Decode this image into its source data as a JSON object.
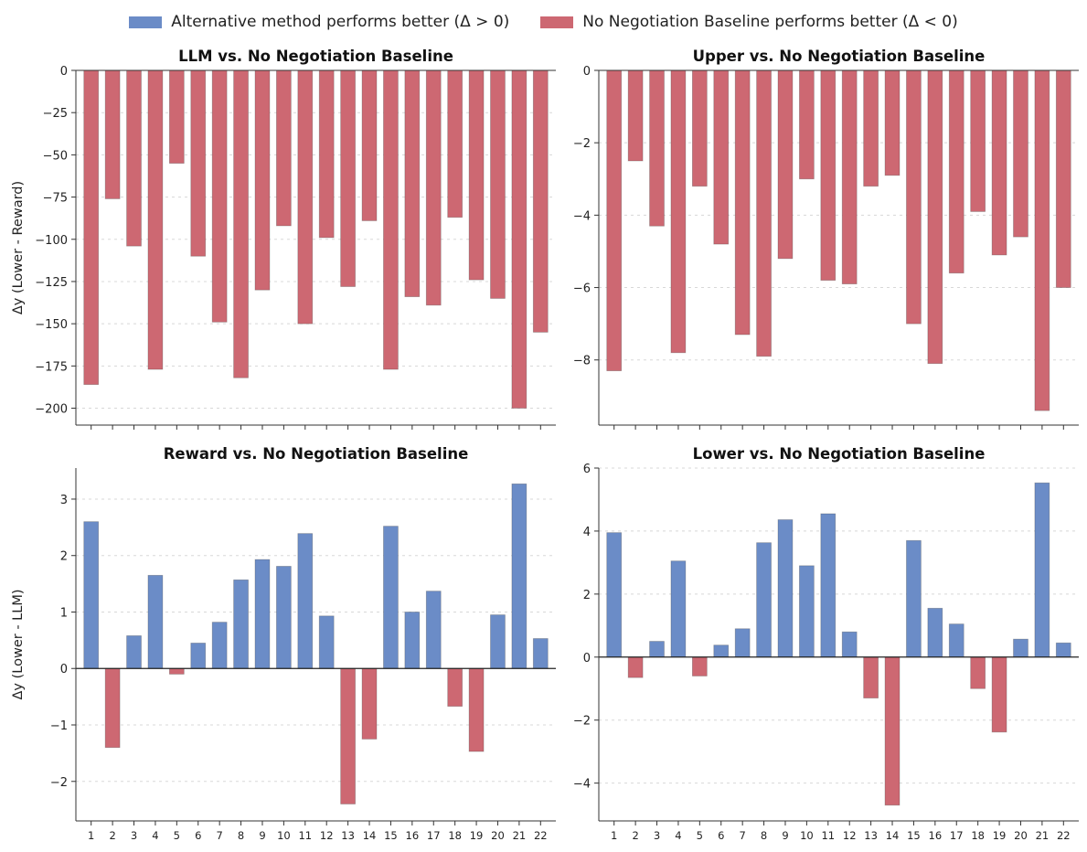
{
  "legend": {
    "positive": {
      "label": "Alternative method performs better (Δ > 0)",
      "color": "#6b8cc7"
    },
    "negative": {
      "label": "No Negotiation Baseline performs better (Δ < 0)",
      "color": "#cd6872"
    }
  },
  "chart_data": [
    {
      "type": "bar",
      "title": "LLM vs. No Negotiation Baseline",
      "ylabel": "Δy (Lower - Reward)",
      "xlabel": "",
      "ylim": [
        -210,
        0
      ],
      "yticks": [
        0,
        -25,
        -50,
        -75,
        -100,
        -125,
        -150,
        -175,
        -200
      ],
      "ytick_labels": [
        "0",
        "−25",
        "−50",
        "−75",
        "−100",
        "−125",
        "−150",
        "−175",
        "−200"
      ],
      "grid": true,
      "categories": [
        "1",
        "2",
        "3",
        "4",
        "5",
        "6",
        "7",
        "8",
        "9",
        "10",
        "11",
        "12",
        "13",
        "14",
        "15",
        "16",
        "17",
        "18",
        "19",
        "20",
        "21",
        "22"
      ],
      "show_xtick_labels": false,
      "values": [
        -186,
        -76,
        -104,
        -177,
        -55,
        -110,
        -149,
        -182,
        -130,
        -92,
        -150,
        -99,
        -128,
        -89,
        -177,
        -134,
        -139,
        -87,
        -124,
        -135,
        -200,
        -155
      ]
    },
    {
      "type": "bar",
      "title": "Upper vs. No Negotiation Baseline",
      "ylabel": "",
      "xlabel": "",
      "ylim": [
        -9.8,
        0
      ],
      "yticks": [
        0,
        -2,
        -4,
        -6,
        -8
      ],
      "ytick_labels": [
        "0",
        "−2",
        "−4",
        "−6",
        "−8"
      ],
      "grid": true,
      "categories": [
        "1",
        "2",
        "3",
        "4",
        "5",
        "6",
        "7",
        "8",
        "9",
        "10",
        "11",
        "12",
        "13",
        "14",
        "15",
        "16",
        "17",
        "18",
        "19",
        "20",
        "21",
        "22"
      ],
      "show_xtick_labels": false,
      "values": [
        -8.3,
        -2.5,
        -4.3,
        -7.8,
        -3.2,
        -4.8,
        -7.3,
        -7.9,
        -5.2,
        -3.0,
        -5.8,
        -5.9,
        -3.2,
        -2.9,
        -7.0,
        -8.1,
        -5.6,
        -3.9,
        -5.1,
        -4.6,
        -9.4,
        -6.0
      ]
    },
    {
      "type": "bar",
      "title": "Reward vs. No Negotiation Baseline",
      "ylabel": "Δy (Lower - LLM)",
      "xlabel": "",
      "ylim": [
        -2.7,
        3.55
      ],
      "yticks": [
        3,
        2,
        1,
        0,
        -1,
        -2
      ],
      "ytick_labels": [
        "3",
        "2",
        "1",
        "0",
        "−1",
        "−2"
      ],
      "grid": true,
      "categories": [
        "1",
        "2",
        "3",
        "4",
        "5",
        "6",
        "7",
        "8",
        "9",
        "10",
        "11",
        "12",
        "13",
        "14",
        "15",
        "16",
        "17",
        "18",
        "19",
        "20",
        "21",
        "22"
      ],
      "show_xtick_labels": true,
      "values": [
        2.6,
        -1.4,
        0.58,
        1.65,
        -0.1,
        0.45,
        0.82,
        1.57,
        1.93,
        1.81,
        2.39,
        0.93,
        -2.4,
        -1.25,
        2.52,
        1.0,
        1.37,
        -0.67,
        -1.47,
        0.95,
        3.27,
        0.53
      ]
    },
    {
      "type": "bar",
      "title": "Lower vs. No Negotiation Baseline",
      "ylabel": "",
      "xlabel": "",
      "ylim": [
        -5.2,
        6.0
      ],
      "yticks": [
        6,
        4,
        2,
        0,
        -2,
        -4
      ],
      "ytick_labels": [
        "6",
        "4",
        "2",
        "0",
        "−2",
        "−4"
      ],
      "grid": true,
      "categories": [
        "1",
        "2",
        "3",
        "4",
        "5",
        "6",
        "7",
        "8",
        "9",
        "10",
        "11",
        "12",
        "13",
        "14",
        "15",
        "16",
        "17",
        "18",
        "19",
        "20",
        "21",
        "22"
      ],
      "show_xtick_labels": true,
      "values": [
        3.95,
        -0.65,
        0.5,
        3.05,
        -0.6,
        0.38,
        0.9,
        3.63,
        4.36,
        2.9,
        4.55,
        0.8,
        -1.3,
        -4.7,
        3.7,
        1.55,
        1.05,
        -1.0,
        -2.38,
        0.57,
        5.53,
        0.45
      ]
    }
  ]
}
